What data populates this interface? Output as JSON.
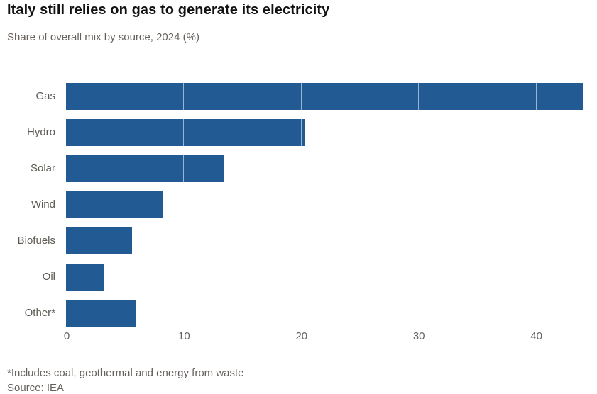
{
  "header": {
    "title": "Italy still relies on gas to generate its electricity",
    "subtitle": "Share of overall mix by source, 2024 (%)"
  },
  "chart_data": {
    "type": "bar",
    "orientation": "horizontal",
    "title": "Italy still relies on gas to generate its electricity",
    "subtitle": "Share of overall mix by source, 2024 (%)",
    "categories": [
      "Gas",
      "Hydro",
      "Solar",
      "Wind",
      "Biofuels",
      "Oil",
      "Other*"
    ],
    "values": [
      44.0,
      20.3,
      13.5,
      8.3,
      5.6,
      3.2,
      6.0
    ],
    "xlabel": "",
    "ylabel": "",
    "xlim": [
      0,
      44.6
    ],
    "xticks": [
      "0",
      "10",
      "20",
      "30",
      "40"
    ],
    "xtick_values": [
      0,
      10,
      20,
      30,
      40
    ],
    "legend": "none",
    "grid": "faint white vertical gridlines visible over bars at each tick",
    "bar_color": "#225b94"
  },
  "footer": {
    "footnote": "*Includes coal, geothermal and energy from waste",
    "source": "Source: IEA"
  },
  "colors": {
    "bar": "#225b94",
    "title_text": "#121212",
    "muted_text": "#66605c",
    "background": "#ffffff"
  }
}
